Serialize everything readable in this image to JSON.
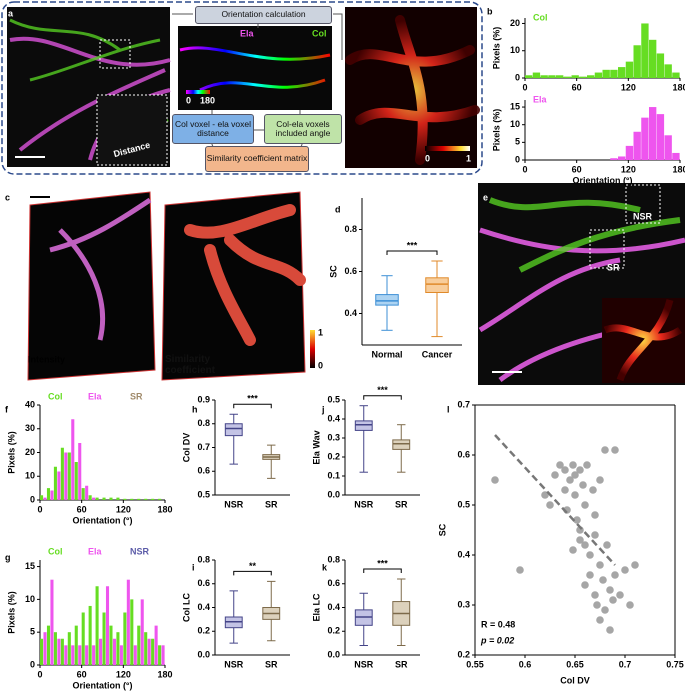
{
  "figure": {
    "panel_labels": [
      "a",
      "b",
      "c",
      "d",
      "e",
      "f",
      "g",
      "h",
      "i",
      "j",
      "k",
      "l"
    ],
    "flow": [
      "Orientation calculation",
      "Col voxel - ela voxel distance",
      "Col-ela voxels included angle",
      "Similarity coefficient matrix"
    ],
    "image_a": {
      "distance": "Distance"
    },
    "image_orientation": {
      "ela": "Ela",
      "col": "Col",
      "cbar": [
        "0",
        "180"
      ]
    },
    "image_sc": {
      "cbar": [
        "0",
        "1"
      ]
    },
    "image_c": {
      "intensity": "Intensity",
      "similarity": "Similarity coefficient",
      "cbar": [
        "1",
        "0"
      ]
    },
    "image_e": {
      "nsr": "NSR",
      "sr": "SR"
    }
  },
  "chart_data": [
    {
      "type": "histogram",
      "ylabel": "Pixels (%)",
      "bins": [
        0,
        9,
        18,
        27,
        36,
        45,
        54,
        63,
        72,
        81,
        90,
        99,
        108,
        117,
        126,
        135,
        144,
        153,
        162,
        171,
        180
      ],
      "series": [
        {
          "name": "Col",
          "color": "#66dd22",
          "values": [
            1,
            2,
            1,
            1,
            1,
            0.5,
            1,
            0.5,
            1,
            2,
            3,
            3,
            4,
            6,
            12,
            20,
            14,
            9,
            5,
            2
          ]
        }
      ],
      "xlim": [
        0,
        180
      ],
      "xticks": [
        0,
        60,
        120,
        180
      ],
      "ylim": [
        0,
        22
      ],
      "yticks": [
        0,
        10,
        20
      ]
    },
    {
      "type": "histogram",
      "ylabel": "Pixels (%)",
      "xlabel": "Orientation (°)",
      "bins": [
        0,
        9,
        18,
        27,
        36,
        45,
        54,
        63,
        72,
        81,
        90,
        99,
        108,
        117,
        126,
        135,
        144,
        153,
        162,
        171,
        180
      ],
      "series": [
        {
          "name": "Ela",
          "color": "#ee55ee",
          "values": [
            0,
            0,
            0,
            0,
            0,
            0,
            0,
            0,
            0,
            0,
            0,
            0.5,
            1,
            4,
            8,
            12,
            15,
            13,
            7,
            2
          ]
        }
      ],
      "xlim": [
        0,
        180
      ],
      "xticks": [
        0,
        60,
        120,
        180
      ],
      "ylim": [
        0,
        17
      ],
      "yticks": [
        0,
        5,
        10,
        15
      ]
    },
    {
      "type": "box",
      "ylabel": "SC",
      "categories": [
        "Normal",
        "Cancer"
      ],
      "boxes": [
        {
          "min": 0.32,
          "q1": 0.44,
          "median": 0.46,
          "q3": 0.49,
          "max": 0.58
        },
        {
          "min": 0.29,
          "q1": 0.5,
          "median": 0.54,
          "q3": 0.57,
          "max": 0.65
        }
      ],
      "colors": [
        {
          "fill": "#9ecbf0",
          "stroke": "#3d8fd6"
        },
        {
          "fill": "#f7c48a",
          "stroke": "#e08a2a"
        }
      ],
      "significance": "***",
      "ylim": [
        0.25,
        0.95
      ],
      "yticks": [
        0.4,
        0.6,
        0.8
      ]
    },
    {
      "type": "histogram",
      "ylabel": "Pixels (%)",
      "xlabel": "Orientation (°)",
      "group_label": "SR",
      "group_color": "#a08a6a",
      "bins": [
        0,
        10,
        20,
        30,
        40,
        50,
        60,
        70,
        80,
        90,
        100,
        110,
        120,
        130,
        140,
        150,
        160,
        170,
        180
      ],
      "series": [
        {
          "name": "Col",
          "color": "#66dd22",
          "values": [
            2,
            5,
            14,
            22,
            20,
            16,
            5,
            2,
            1,
            1,
            1,
            1,
            0.5,
            0.5,
            0.5,
            0.5,
            0.5,
            0.5
          ]
        },
        {
          "name": "Ela",
          "color": "#ee55ee",
          "values": [
            1,
            4,
            12,
            20,
            34,
            24,
            6,
            1,
            0,
            0,
            0,
            0,
            0,
            0,
            0,
            0,
            0,
            0
          ]
        }
      ],
      "xlim": [
        0,
        180
      ],
      "xticks": [
        0,
        60,
        120,
        180
      ],
      "ylim": [
        0,
        40
      ],
      "yticks": [
        0,
        10,
        20,
        30,
        40
      ]
    },
    {
      "type": "histogram",
      "ylabel": "Pixels (%)",
      "xlabel": "Orientation (°)",
      "group_label": "NSR",
      "group_color": "#5b5ba8",
      "bins": [
        0,
        10,
        20,
        30,
        40,
        50,
        60,
        70,
        80,
        90,
        100,
        110,
        120,
        130,
        140,
        150,
        160,
        170,
        180
      ],
      "series": [
        {
          "name": "Col",
          "color": "#66dd22",
          "values": [
            4,
            6,
            5,
            4,
            5,
            6,
            8,
            9,
            12,
            8,
            6,
            5,
            8,
            10,
            6,
            5,
            4,
            3
          ]
        },
        {
          "name": "Ela",
          "color": "#ee55ee",
          "values": [
            5,
            13,
            4,
            3,
            3,
            3,
            3,
            3,
            4,
            12,
            4,
            3,
            13,
            3,
            10,
            4,
            6,
            3
          ]
        }
      ],
      "xlim": [
        0,
        180
      ],
      "xticks": [
        0,
        60,
        120,
        180
      ],
      "ylim": [
        0,
        16
      ],
      "yticks": [
        0,
        5,
        10,
        15
      ]
    },
    {
      "type": "box",
      "ylabel": "Col DV",
      "categories": [
        "NSR",
        "SR"
      ],
      "boxes": [
        {
          "min": 0.63,
          "q1": 0.75,
          "median": 0.78,
          "q3": 0.8,
          "max": 0.84
        },
        {
          "min": 0.57,
          "q1": 0.65,
          "median": 0.66,
          "q3": 0.67,
          "max": 0.71
        }
      ],
      "colors": [
        {
          "fill": "#b9b9e0",
          "stroke": "#444488"
        },
        {
          "fill": "#d6c9b0",
          "stroke": "#7d6a4a"
        }
      ],
      "significance": "***",
      "ylim": [
        0.5,
        0.9
      ],
      "yticks": [
        0.5,
        0.6,
        0.7,
        0.8,
        0.9
      ]
    },
    {
      "type": "box",
      "ylabel": "Ela Wav",
      "categories": [
        "NSR",
        "SR"
      ],
      "boxes": [
        {
          "min": 0.12,
          "q1": 0.34,
          "median": 0.37,
          "q3": 0.39,
          "max": 0.47
        },
        {
          "min": 0.12,
          "q1": 0.24,
          "median": 0.27,
          "q3": 0.29,
          "max": 0.37
        }
      ],
      "colors": [
        {
          "fill": "#b9b9e0",
          "stroke": "#444488"
        },
        {
          "fill": "#d6c9b0",
          "stroke": "#7d6a4a"
        }
      ],
      "significance": "***",
      "ylim": [
        0,
        0.5
      ],
      "yticks": [
        {
          "value": 0,
          "label": "0.0"
        },
        0.1,
        0.2,
        0.3,
        0.4,
        0.5
      ]
    },
    {
      "type": "box",
      "ylabel": "Col LC",
      "categories": [
        "NSR",
        "SR"
      ],
      "boxes": [
        {
          "min": 0.1,
          "q1": 0.23,
          "median": 0.28,
          "q3": 0.32,
          "max": 0.54
        },
        {
          "min": 0.12,
          "q1": 0.3,
          "median": 0.35,
          "q3": 0.4,
          "max": 0.62
        }
      ],
      "colors": [
        {
          "fill": "#b9b9e0",
          "stroke": "#444488"
        },
        {
          "fill": "#d6c9b0",
          "stroke": "#7d6a4a"
        }
      ],
      "significance": "**",
      "ylim": [
        0,
        0.8
      ],
      "yticks": [
        {
          "value": 0,
          "label": "0.0"
        },
        0.2,
        0.4,
        0.6,
        0.8
      ]
    },
    {
      "type": "box",
      "ylabel": "Ela LC",
      "categories": [
        "NSR",
        "SR"
      ],
      "boxes": [
        {
          "min": 0.08,
          "q1": 0.25,
          "median": 0.32,
          "q3": 0.38,
          "max": 0.52
        },
        {
          "min": 0.08,
          "q1": 0.25,
          "median": 0.35,
          "q3": 0.45,
          "max": 0.64
        }
      ],
      "colors": [
        {
          "fill": "#b9b9e0",
          "stroke": "#444488"
        },
        {
          "fill": "#d6c9b0",
          "stroke": "#7d6a4a"
        }
      ],
      "significance": "***",
      "ylim": [
        0,
        0.8
      ],
      "yticks": [
        {
          "value": 0,
          "label": "0.0"
        },
        0.2,
        0.4,
        0.6,
        0.8
      ]
    },
    {
      "type": "scatter",
      "xlabel": "Col DV",
      "ylabel": "SC",
      "color": "#a6a6a6",
      "x": [
        0.57,
        0.595,
        0.62,
        0.625,
        0.63,
        0.635,
        0.64,
        0.64,
        0.642,
        0.645,
        0.648,
        0.65,
        0.65,
        0.652,
        0.655,
        0.655,
        0.658,
        0.66,
        0.66,
        0.662,
        0.665,
        0.665,
        0.668,
        0.67,
        0.67,
        0.672,
        0.675,
        0.675,
        0.678,
        0.68,
        0.68,
        0.682,
        0.685,
        0.685,
        0.688,
        0.69,
        0.69,
        0.695,
        0.7,
        0.705,
        0.71,
        0.655,
        0.66,
        0.67,
        0.648,
        0.675
      ],
      "y": [
        0.55,
        0.37,
        0.52,
        0.5,
        0.56,
        0.58,
        0.57,
        0.53,
        0.49,
        0.55,
        0.58,
        0.56,
        0.52,
        0.47,
        0.57,
        0.45,
        0.54,
        0.5,
        0.42,
        0.58,
        0.4,
        0.36,
        0.53,
        0.32,
        0.44,
        0.3,
        0.38,
        0.27,
        0.35,
        0.61,
        0.29,
        0.42,
        0.33,
        0.25,
        0.31,
        0.36,
        0.61,
        0.32,
        0.37,
        0.3,
        0.38,
        0.43,
        0.34,
        0.48,
        0.41,
        0.55
      ],
      "fit_line": {
        "x": [
          0.57,
          0.69
        ],
        "y": [
          0.64,
          0.38
        ]
      },
      "annotations": [
        "R = 0.48",
        "p = 0.02"
      ],
      "xlim": [
        0.55,
        0.75
      ],
      "xticks": [
        0.55,
        0.6,
        0.65,
        0.7,
        0.75
      ],
      "ylim": [
        0.2,
        0.7
      ],
      "yticks": [
        0.2,
        0.3,
        0.4,
        0.5,
        0.6,
        0.7
      ]
    }
  ]
}
